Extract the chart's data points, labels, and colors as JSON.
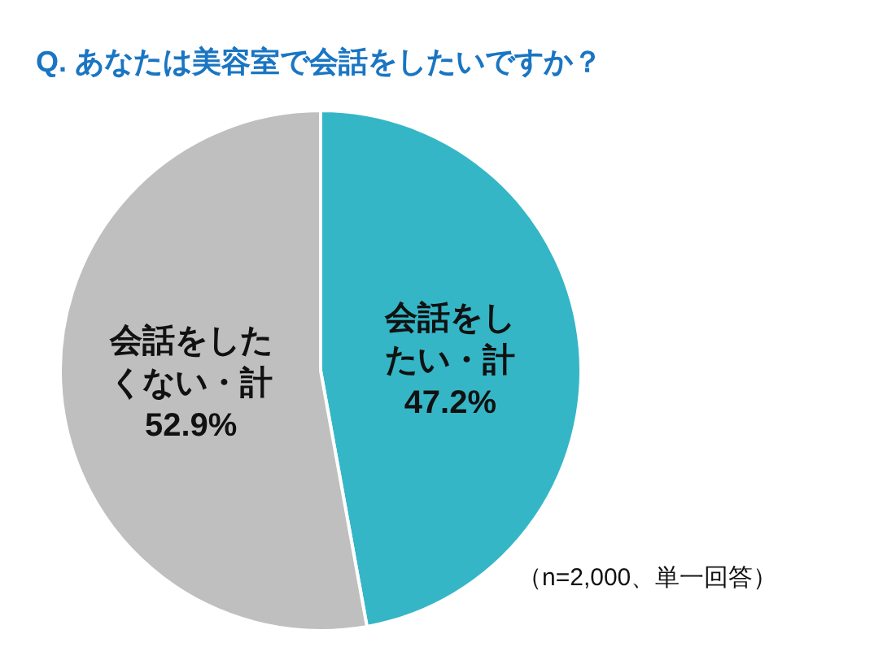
{
  "chart_data": {
    "type": "pie",
    "title": "Q.  あなたは美容室で会話をしたいですか？",
    "categories": [
      "会話をしたい・計",
      "会話をしたくない・計"
    ],
    "values": [
      47.2,
      52.9
    ],
    "value_labels": [
      "47.2%",
      "52.9%"
    ],
    "colors": [
      "#35b6c6",
      "#bfbfbf"
    ],
    "annotations": [
      "（n=2,000、単一回答）"
    ]
  }
}
